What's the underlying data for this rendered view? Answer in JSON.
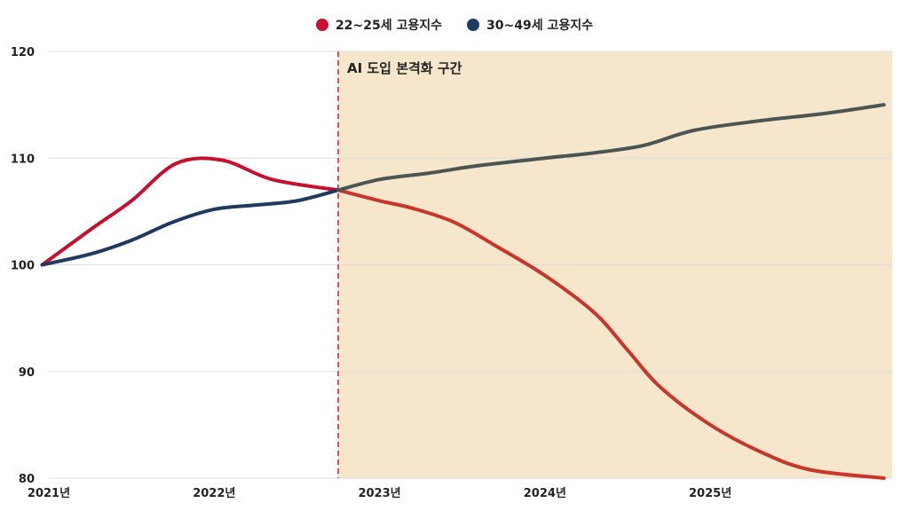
{
  "chart_data": {
    "type": "line",
    "title": "",
    "xlabel": "",
    "ylabel": "",
    "ylim": [
      80,
      120
    ],
    "yticks": [
      80,
      90,
      100,
      110,
      120
    ],
    "xlim": [
      2021.0,
      2026.1
    ],
    "xticks": [
      {
        "x": 2021,
        "label": "2021년"
      },
      {
        "x": 2022,
        "label": "2022년"
      },
      {
        "x": 2023,
        "label": "2023년"
      },
      {
        "x": 2024,
        "label": "2024년"
      },
      {
        "x": 2025,
        "label": "2025년"
      }
    ],
    "grid": true,
    "legend_position": "top-center",
    "shaded_region": {
      "from": 2022.75,
      "to": 2026.1,
      "label": "AI 도입 본격화 구간",
      "color": "#f5e6cc"
    },
    "series": [
      {
        "name": "22~25세 고용지수",
        "color": "#c8102e",
        "points": [
          [
            2020.96,
            100
          ],
          [
            2021.27,
            103.5
          ],
          [
            2021.5,
            106
          ],
          [
            2021.77,
            109.5
          ],
          [
            2022.05,
            109.8
          ],
          [
            2022.35,
            108
          ],
          [
            2022.75,
            107
          ],
          [
            2023.0,
            106
          ],
          [
            2023.2,
            105.3
          ],
          [
            2023.45,
            104
          ],
          [
            2023.7,
            101.8
          ],
          [
            2024.0,
            99
          ],
          [
            2024.3,
            95.5
          ],
          [
            2024.5,
            92
          ],
          [
            2024.7,
            88.5
          ],
          [
            2025.0,
            85
          ],
          [
            2025.3,
            82.5
          ],
          [
            2025.6,
            80.8
          ],
          [
            2026.05,
            80
          ]
        ],
        "split_at": 2022.75,
        "color_after_split": "#c8362a"
      },
      {
        "name": "30~49세 고용지수",
        "color": "#1f3a5f",
        "points": [
          [
            2020.96,
            100
          ],
          [
            2021.25,
            101
          ],
          [
            2021.5,
            102.3
          ],
          [
            2021.75,
            104
          ],
          [
            2022.0,
            105.2
          ],
          [
            2022.25,
            105.6
          ],
          [
            2022.5,
            106
          ],
          [
            2022.75,
            107
          ],
          [
            2023.0,
            108
          ],
          [
            2023.3,
            108.6
          ],
          [
            2023.6,
            109.3
          ],
          [
            2024.0,
            110
          ],
          [
            2024.3,
            110.5
          ],
          [
            2024.6,
            111.2
          ],
          [
            2024.9,
            112.6
          ],
          [
            2025.3,
            113.5
          ],
          [
            2025.7,
            114.2
          ],
          [
            2026.05,
            115
          ]
        ],
        "split_at": 2022.75,
        "color_after_split": "#4a5554"
      }
    ]
  }
}
